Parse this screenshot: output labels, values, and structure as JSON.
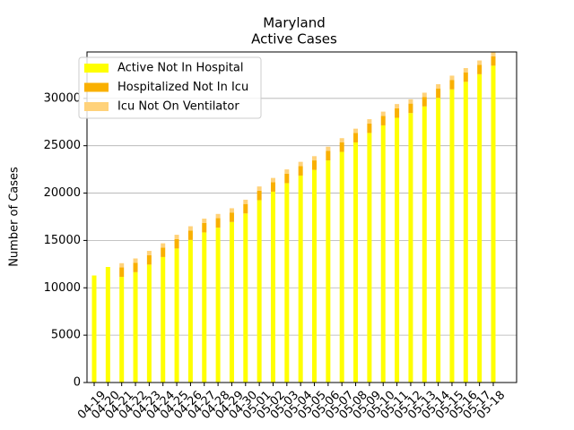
{
  "chart_data": {
    "type": "bar",
    "stacked": true,
    "title": "Maryland",
    "subtitle": "Active Cases",
    "ylabel": "Number of Cases",
    "categories": [
      "04-19",
      "04-20",
      "04-21",
      "04-22",
      "04-23",
      "04-24",
      "04-25",
      "04-26",
      "04-27",
      "04-28",
      "04-29",
      "04-30",
      "05-01",
      "05-02",
      "05-03",
      "05-04",
      "05-05",
      "05-06",
      "05-07",
      "05-08",
      "05-09",
      "05-10",
      "05-11",
      "05-12",
      "05-13",
      "05-14",
      "05-15",
      "05-16",
      "05-17",
      "05-18"
    ],
    "series": [
      {
        "name": "Active Not In Hospital",
        "color": "#ffff00",
        "values": [
          11300,
          12200,
          11150,
          11650,
          12450,
          13250,
          14150,
          15050,
          15850,
          16350,
          16950,
          17850,
          19250,
          20150,
          21050,
          21850,
          22450,
          23450,
          24350,
          25350,
          26350,
          27150,
          27950,
          28450,
          29150,
          30050,
          30950,
          31750,
          32550,
          33450
        ]
      },
      {
        "name": "Hospitalized Not In Icu",
        "color": "#f9b000",
        "values": [
          0,
          0,
          1000,
          1000,
          1000,
          1000,
          1000,
          1000,
          1000,
          1000,
          1000,
          1000,
          1000,
          1000,
          1000,
          1000,
          1000,
          1000,
          1000,
          1000,
          1000,
          1000,
          1000,
          1000,
          1000,
          1000,
          1000,
          1000,
          1000,
          1000
        ]
      },
      {
        "name": "Icu Not On Ventilator",
        "color": "#ffd27a",
        "values": [
          0,
          0,
          450,
          450,
          450,
          450,
          450,
          450,
          450,
          450,
          450,
          450,
          450,
          450,
          450,
          450,
          450,
          450,
          450,
          450,
          450,
          450,
          450,
          450,
          450,
          450,
          450,
          450,
          450,
          450
        ]
      }
    ],
    "ylim": [
      0,
      34900
    ],
    "yticks": [
      0,
      5000,
      10000,
      15000,
      20000,
      25000,
      30000
    ],
    "grid": true,
    "legend": "upper left"
  }
}
